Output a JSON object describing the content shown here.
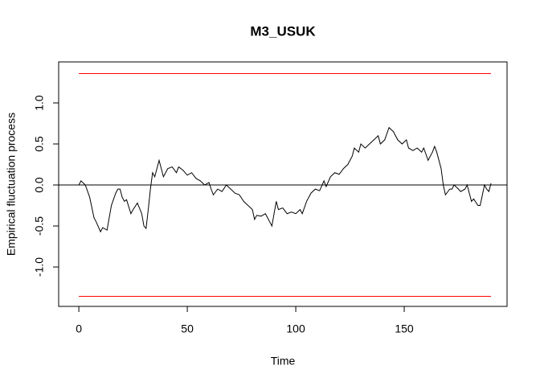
{
  "chart_data": {
    "type": "line",
    "title": "M3_USUK",
    "xlabel": "Time",
    "ylabel": "Empirical fluctuation process",
    "xlim": [
      -9.3,
      197.4
    ],
    "ylim": [
      -1.48,
      1.5
    ],
    "xticks": [
      0,
      50,
      100,
      150
    ],
    "yticks": [
      {
        "value": -1,
        "label": "-1.0"
      },
      -0.5,
      {
        "value": 0,
        "label": "0.0"
      },
      0.5,
      {
        "value": 1,
        "label": "1.0"
      }
    ],
    "reference_lines": [
      {
        "value": 0,
        "color": "#000000"
      }
    ],
    "series": [
      {
        "color": "#000000",
        "x": [
          0,
          1,
          3,
          5,
          7,
          8,
          10,
          11,
          13,
          14,
          15,
          17,
          18,
          19,
          20,
          21,
          22,
          24,
          25,
          27,
          29,
          30,
          31,
          32,
          33,
          34,
          35,
          36,
          37,
          38,
          39,
          40,
          41,
          43,
          45,
          46,
          48,
          50,
          52,
          54,
          56,
          58,
          60,
          61,
          62,
          64,
          66,
          68,
          70,
          72,
          74,
          76,
          78,
          80,
          81,
          82,
          84,
          86,
          88,
          89,
          90,
          91,
          92,
          94,
          96,
          98,
          100,
          102,
          103,
          105,
          107,
          109,
          111,
          113,
          114,
          116,
          118,
          120,
          122,
          124,
          126,
          127,
          129,
          130,
          132,
          134,
          136,
          138,
          139,
          141,
          143,
          145,
          147,
          149,
          151,
          152,
          154,
          156,
          158,
          159,
          161,
          163,
          164,
          165,
          167,
          168,
          169,
          171,
          172,
          173,
          175,
          176,
          178,
          179,
          180,
          181,
          182,
          184,
          185,
          187,
          188,
          189,
          190
        ],
        "values": [
          0.0,
          0.05,
          0.0,
          -0.15,
          -0.4,
          -0.45,
          -0.57,
          -0.52,
          -0.55,
          -0.4,
          -0.25,
          -0.1,
          -0.05,
          -0.05,
          -0.15,
          -0.2,
          -0.18,
          -0.35,
          -0.3,
          -0.22,
          -0.35,
          -0.5,
          -0.53,
          -0.3,
          -0.05,
          0.15,
          0.1,
          0.2,
          0.3,
          0.2,
          0.1,
          0.15,
          0.2,
          0.22,
          0.15,
          0.22,
          0.18,
          0.12,
          0.15,
          0.08,
          0.05,
          0.0,
          0.03,
          -0.05,
          -0.12,
          -0.05,
          -0.08,
          0.0,
          -0.05,
          -0.1,
          -0.12,
          -0.2,
          -0.25,
          -0.3,
          -0.42,
          -0.37,
          -0.38,
          -0.35,
          -0.45,
          -0.5,
          -0.35,
          -0.2,
          -0.3,
          -0.28,
          -0.35,
          -0.33,
          -0.35,
          -0.3,
          -0.35,
          -0.2,
          -0.1,
          -0.05,
          -0.07,
          0.05,
          -0.02,
          0.1,
          0.15,
          0.13,
          0.2,
          0.25,
          0.35,
          0.45,
          0.4,
          0.5,
          0.45,
          0.5,
          0.55,
          0.6,
          0.5,
          0.55,
          0.7,
          0.65,
          0.55,
          0.5,
          0.55,
          0.45,
          0.42,
          0.45,
          0.4,
          0.45,
          0.3,
          0.4,
          0.47,
          0.4,
          0.2,
          0.0,
          -0.12,
          -0.05,
          -0.05,
          0.0,
          -0.05,
          -0.08,
          -0.05,
          0.0,
          -0.1,
          -0.2,
          -0.17,
          -0.25,
          -0.25,
          0.0,
          -0.05,
          -0.08,
          0.02
        ]
      },
      {
        "color": "#ff0000",
        "x": [
          0,
          190
        ],
        "values": [
          1.358,
          1.358
        ]
      },
      {
        "color": "#ff0000",
        "x": [
          0,
          190
        ],
        "values": [
          -1.358,
          -1.358
        ]
      }
    ]
  }
}
